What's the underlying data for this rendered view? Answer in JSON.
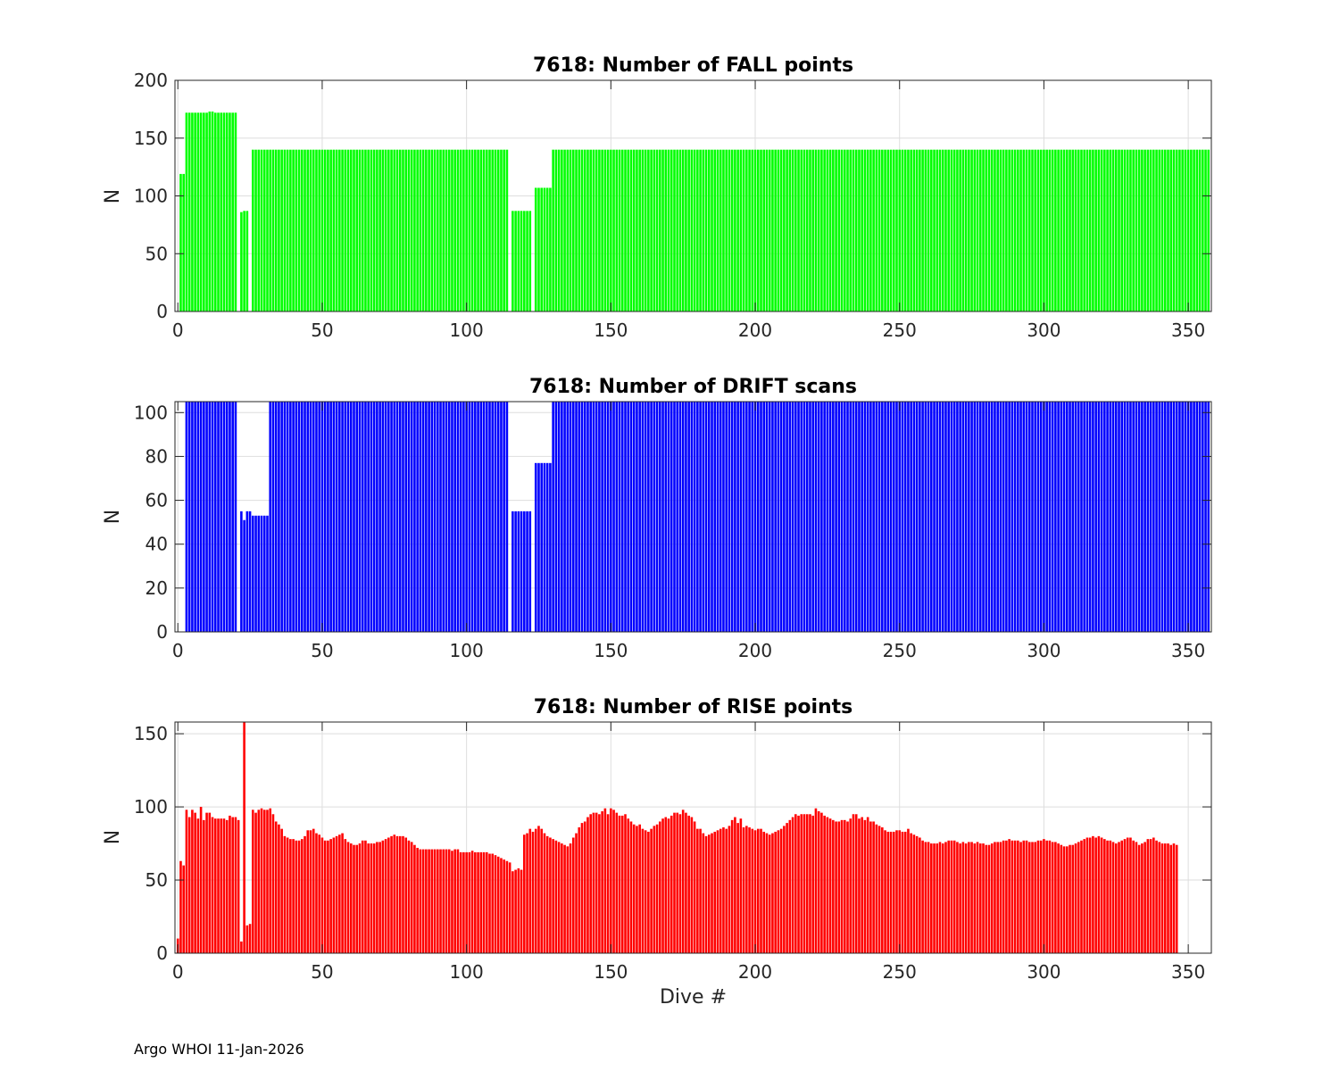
{
  "footer": "Argo WHOI 11-Jan-2026",
  "chart_data": [
    {
      "type": "bar",
      "title": "7618: Number of FALL points",
      "xlabel": "",
      "ylabel": "N",
      "xlim": [
        -1,
        358
      ],
      "ylim": [
        0,
        200
      ],
      "xticks": [
        0,
        50,
        100,
        150,
        200,
        250,
        300,
        350
      ],
      "yticks": [
        0,
        50,
        100,
        150,
        200
      ],
      "color": "#00ff00",
      "segments": [
        {
          "from": 1,
          "to": 2,
          "value": 119
        },
        {
          "from": 3,
          "to": 10,
          "value": 172
        },
        {
          "from": 11,
          "to": 12,
          "value": 173
        },
        {
          "from": 13,
          "to": 20,
          "value": 172
        },
        {
          "from": 22,
          "to": 22,
          "value": 86
        },
        {
          "from": 23,
          "to": 24,
          "value": 87
        },
        {
          "from": 26,
          "to": 114,
          "value": 140
        },
        {
          "from": 116,
          "to": 122,
          "value": 87
        },
        {
          "from": 124,
          "to": 129,
          "value": 107
        },
        {
          "from": 130,
          "to": 357,
          "value": 140
        }
      ]
    },
    {
      "type": "bar",
      "title": "7618: Number of DRIFT scans",
      "xlabel": "",
      "ylabel": "N",
      "xlim": [
        -1,
        358
      ],
      "ylim": [
        0,
        105
      ],
      "xticks": [
        0,
        50,
        100,
        150,
        200,
        250,
        300,
        350
      ],
      "yticks": [
        0,
        20,
        40,
        60,
        80,
        100
      ],
      "color": "#0000ff",
      "segments": [
        {
          "from": 3,
          "to": 20,
          "value": 105
        },
        {
          "from": 22,
          "to": 22,
          "value": 55
        },
        {
          "from": 23,
          "to": 23,
          "value": 51
        },
        {
          "from": 24,
          "to": 25,
          "value": 55
        },
        {
          "from": 26,
          "to": 31,
          "value": 53
        },
        {
          "from": 32,
          "to": 114,
          "value": 105
        },
        {
          "from": 116,
          "to": 122,
          "value": 55
        },
        {
          "from": 124,
          "to": 129,
          "value": 77
        },
        {
          "from": 130,
          "to": 357,
          "value": 105
        }
      ]
    },
    {
      "type": "bar",
      "title": "7618: Number of RISE points",
      "xlabel": "Dive #",
      "ylabel": "N",
      "xlim": [
        -1,
        358
      ],
      "ylim": [
        0,
        158
      ],
      "xticks": [
        0,
        50,
        100,
        150,
        200,
        250,
        300,
        350
      ],
      "yticks": [
        0,
        50,
        100,
        150
      ],
      "color": "#ff0000",
      "values_start": 0,
      "values": [
        10,
        63,
        60,
        98,
        93,
        98,
        96,
        92,
        100,
        91,
        96,
        96,
        93,
        92,
        92,
        92,
        92,
        91,
        94,
        93,
        93,
        91,
        8,
        158,
        19,
        20,
        98,
        96,
        98,
        99,
        98,
        98,
        99,
        95,
        90,
        88,
        85,
        80,
        79,
        78,
        78,
        77,
        77,
        78,
        80,
        84,
        84,
        85,
        82,
        81,
        79,
        77,
        77,
        78,
        79,
        80,
        81,
        82,
        78,
        76,
        75,
        74,
        74,
        75,
        77,
        77,
        75,
        75,
        75,
        76,
        76,
        77,
        78,
        79,
        80,
        81,
        80,
        80,
        80,
        79,
        77,
        76,
        74,
        72,
        71,
        71,
        71,
        71,
        71,
        71,
        71,
        71,
        71,
        71,
        71,
        70,
        71,
        71,
        69,
        69,
        69,
        69,
        70,
        69,
        69,
        69,
        69,
        69,
        68,
        68,
        67,
        66,
        65,
        64,
        63,
        62,
        56,
        57,
        58,
        57,
        81,
        82,
        85,
        83,
        85,
        87,
        85,
        82,
        80,
        79,
        78,
        77,
        76,
        75,
        74,
        73,
        75,
        79,
        82,
        86,
        89,
        90,
        93,
        95,
        96,
        96,
        95,
        97,
        99,
        95,
        99,
        98,
        96,
        94,
        94,
        95,
        92,
        90,
        88,
        87,
        88,
        85,
        84,
        83,
        85,
        87,
        88,
        90,
        92,
        93,
        92,
        94,
        96,
        96,
        95,
        98,
        96,
        94,
        93,
        90,
        85,
        85,
        82,
        80,
        81,
        82,
        83,
        84,
        85,
        86,
        85,
        87,
        91,
        93,
        89,
        92,
        86,
        87,
        86,
        85,
        84,
        85,
        85,
        83,
        82,
        81,
        82,
        83,
        84,
        85,
        87,
        89,
        91,
        93,
        95,
        94,
        95,
        95,
        95,
        95,
        94,
        99,
        97,
        96,
        94,
        93,
        92,
        91,
        90,
        90,
        91,
        91,
        90,
        92,
        95,
        95,
        92,
        93,
        91,
        93,
        90,
        90,
        88,
        87,
        86,
        84,
        83,
        83,
        83,
        84,
        84,
        83,
        83,
        85,
        82,
        81,
        80,
        79,
        77,
        76,
        76,
        75,
        75,
        75,
        76,
        75,
        76,
        77,
        77,
        77,
        76,
        75,
        76,
        75,
        76,
        76,
        75,
        76,
        75,
        75,
        74,
        74,
        75,
        76,
        76,
        76,
        77,
        77,
        78,
        77,
        77,
        77,
        76,
        77,
        77,
        76,
        76,
        76,
        77,
        77,
        78,
        77,
        77,
        76,
        76,
        75,
        74,
        73,
        73,
        74,
        74,
        75,
        76,
        77,
        78,
        79,
        79,
        80,
        79,
        80,
        79,
        78,
        77,
        77,
        76,
        75,
        76,
        77,
        78,
        79,
        79,
        77,
        76,
        74,
        75,
        76,
        78,
        78,
        79,
        77,
        76,
        75,
        75,
        75,
        74,
        75,
        74
      ]
    }
  ]
}
